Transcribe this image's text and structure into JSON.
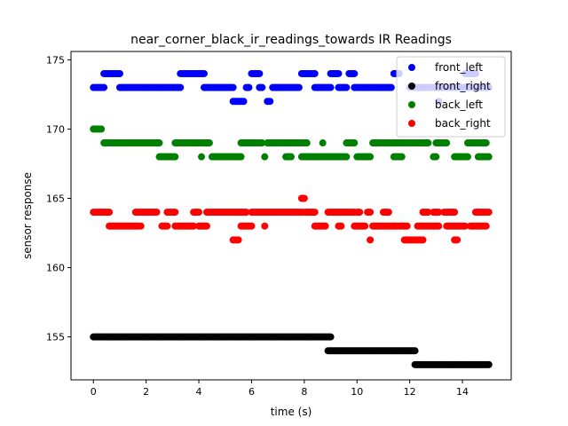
{
  "chart_data": {
    "type": "scatter",
    "title": "near_corner_black_ir_readings_towards IR Readings",
    "xlabel": "time (s)",
    "ylabel": "sensor response",
    "xlim": [
      -0.85,
      15.85
    ],
    "ylim": [
      151.9,
      175.6
    ],
    "xticks": [
      0,
      2,
      4,
      6,
      8,
      10,
      12,
      14
    ],
    "yticks": [
      155,
      160,
      165,
      170,
      175
    ],
    "grid": false,
    "legend_position": "top-right",
    "series": [
      {
        "name": "front_left",
        "color": "#0000ff",
        "segments": [
          {
            "x0": 0.0,
            "x1": 0.4,
            "y": 173
          },
          {
            "x0": 0.4,
            "x1": 1.0,
            "y": 174
          },
          {
            "x0": 1.0,
            "x1": 3.3,
            "y": 173
          },
          {
            "x0": 3.3,
            "x1": 4.2,
            "y": 174
          },
          {
            "x0": 4.2,
            "x1": 5.3,
            "y": 173
          },
          {
            "x0": 5.3,
            "x1": 5.7,
            "y": 172
          },
          {
            "x0": 5.8,
            "x1": 5.9,
            "y": 173
          },
          {
            "x0": 6.0,
            "x1": 6.3,
            "y": 174
          },
          {
            "x0": 6.3,
            "x1": 6.4,
            "y": 173
          },
          {
            "x0": 6.6,
            "x1": 6.7,
            "y": 172
          },
          {
            "x0": 6.8,
            "x1": 7.8,
            "y": 173
          },
          {
            "x0": 7.9,
            "x1": 8.4,
            "y": 174
          },
          {
            "x0": 8.4,
            "x1": 9.0,
            "y": 173
          },
          {
            "x0": 9.0,
            "x1": 9.3,
            "y": 174
          },
          {
            "x0": 9.3,
            "x1": 9.6,
            "y": 173
          },
          {
            "x0": 9.7,
            "x1": 9.9,
            "y": 174
          },
          {
            "x0": 9.9,
            "x1": 11.3,
            "y": 173
          },
          {
            "x0": 11.4,
            "x1": 11.6,
            "y": 174
          },
          {
            "x0": 12.0,
            "x1": 15.0,
            "y": 173
          },
          {
            "x0": 13.1,
            "x1": 13.1,
            "y": 172
          },
          {
            "x0": 14.1,
            "x1": 14.5,
            "y": 174
          }
        ]
      },
      {
        "name": "front_right",
        "color": "#000000",
        "segments": [
          {
            "x0": 0.0,
            "x1": 9.0,
            "y": 155
          },
          {
            "x0": 8.9,
            "x1": 12.2,
            "y": 154
          },
          {
            "x0": 12.2,
            "x1": 15.0,
            "y": 153
          }
        ]
      },
      {
        "name": "back_left",
        "color": "#008000",
        "segments": [
          {
            "x0": 0.0,
            "x1": 0.3,
            "y": 170
          },
          {
            "x0": 0.4,
            "x1": 2.5,
            "y": 169
          },
          {
            "x0": 2.5,
            "x1": 3.1,
            "y": 168
          },
          {
            "x0": 3.1,
            "x1": 4.4,
            "y": 169
          },
          {
            "x0": 4.1,
            "x1": 4.1,
            "y": 168
          },
          {
            "x0": 4.5,
            "x1": 5.6,
            "y": 168
          },
          {
            "x0": 5.6,
            "x1": 6.4,
            "y": 169
          },
          {
            "x0": 6.5,
            "x1": 6.5,
            "y": 168
          },
          {
            "x0": 6.6,
            "x1": 8.1,
            "y": 169
          },
          {
            "x0": 7.3,
            "x1": 7.5,
            "y": 168
          },
          {
            "x0": 7.9,
            "x1": 9.6,
            "y": 168
          },
          {
            "x0": 8.7,
            "x1": 8.7,
            "y": 169
          },
          {
            "x0": 9.6,
            "x1": 9.9,
            "y": 169
          },
          {
            "x0": 10.0,
            "x1": 10.5,
            "y": 168
          },
          {
            "x0": 10.6,
            "x1": 12.7,
            "y": 169
          },
          {
            "x0": 11.4,
            "x1": 11.7,
            "y": 168
          },
          {
            "x0": 12.6,
            "x1": 12.6,
            "y": 169
          },
          {
            "x0": 12.9,
            "x1": 13.0,
            "y": 168
          },
          {
            "x0": 13.0,
            "x1": 13.4,
            "y": 169
          },
          {
            "x0": 13.7,
            "x1": 14.2,
            "y": 168
          },
          {
            "x0": 14.2,
            "x1": 14.9,
            "y": 169
          },
          {
            "x0": 14.6,
            "x1": 15.0,
            "y": 168
          }
        ]
      },
      {
        "name": "back_right",
        "color": "#ff0000",
        "segments": [
          {
            "x0": 0.0,
            "x1": 0.6,
            "y": 164
          },
          {
            "x0": 0.6,
            "x1": 1.7,
            "y": 163
          },
          {
            "x0": 1.8,
            "x1": 1.8,
            "y": 163
          },
          {
            "x0": 1.6,
            "x1": 2.4,
            "y": 164
          },
          {
            "x0": 2.6,
            "x1": 2.8,
            "y": 163
          },
          {
            "x0": 2.8,
            "x1": 3.1,
            "y": 164
          },
          {
            "x0": 3.1,
            "x1": 3.8,
            "y": 163
          },
          {
            "x0": 3.8,
            "x1": 4.0,
            "y": 164
          },
          {
            "x0": 4.0,
            "x1": 4.3,
            "y": 163
          },
          {
            "x0": 4.3,
            "x1": 5.8,
            "y": 164
          },
          {
            "x0": 5.3,
            "x1": 5.5,
            "y": 162
          },
          {
            "x0": 5.6,
            "x1": 6.0,
            "y": 163
          },
          {
            "x0": 6.0,
            "x1": 7.9,
            "y": 164
          },
          {
            "x0": 6.5,
            "x1": 6.5,
            "y": 163
          },
          {
            "x0": 7.9,
            "x1": 8.0,
            "y": 165
          },
          {
            "x0": 8.0,
            "x1": 8.4,
            "y": 164
          },
          {
            "x0": 8.4,
            "x1": 8.8,
            "y": 163
          },
          {
            "x0": 8.9,
            "x1": 9.9,
            "y": 164
          },
          {
            "x0": 9.3,
            "x1": 9.4,
            "y": 163
          },
          {
            "x0": 9.9,
            "x1": 10.3,
            "y": 163
          },
          {
            "x0": 10.0,
            "x1": 10.1,
            "y": 164
          },
          {
            "x0": 10.4,
            "x1": 10.5,
            "y": 164
          },
          {
            "x0": 10.5,
            "x1": 10.5,
            "y": 162
          },
          {
            "x0": 10.6,
            "x1": 11.5,
            "y": 163
          },
          {
            "x0": 11.0,
            "x1": 11.2,
            "y": 164
          },
          {
            "x0": 11.6,
            "x1": 11.9,
            "y": 163
          },
          {
            "x0": 11.8,
            "x1": 12.5,
            "y": 162
          },
          {
            "x0": 12.3,
            "x1": 13.1,
            "y": 163
          },
          {
            "x0": 12.5,
            "x1": 12.7,
            "y": 164
          },
          {
            "x0": 12.9,
            "x1": 13.1,
            "y": 164
          },
          {
            "x0": 13.3,
            "x1": 13.7,
            "y": 164
          },
          {
            "x0": 13.4,
            "x1": 14.1,
            "y": 163
          },
          {
            "x0": 13.7,
            "x1": 13.8,
            "y": 162
          },
          {
            "x0": 14.3,
            "x1": 14.9,
            "y": 163
          },
          {
            "x0": 14.5,
            "x1": 15.0,
            "y": 164
          }
        ]
      }
    ]
  }
}
